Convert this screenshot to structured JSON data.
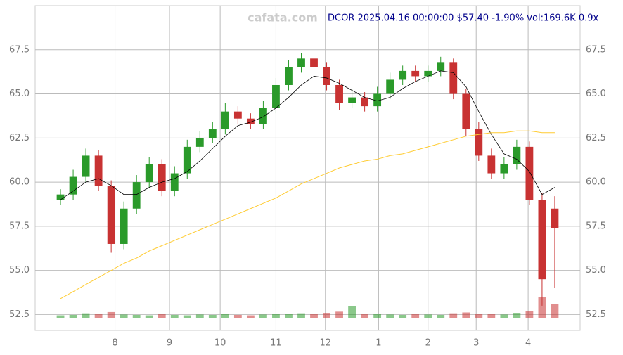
{
  "chart_data": {
    "type": "candlestick",
    "title": "DCOR 2025.04.16 00:00:00 $57.40 -1.90% vol:169.6K 0.9x",
    "watermark": "cafata.com",
    "x": [
      0,
      1,
      2,
      3,
      4,
      5,
      6,
      7,
      8,
      9,
      10,
      11,
      12,
      13,
      14,
      15,
      16,
      17,
      18,
      19,
      20,
      21,
      22,
      23,
      24,
      25,
      26,
      27,
      28,
      29,
      30,
      31,
      32,
      33,
      34,
      35,
      36,
      37,
      38,
      39
    ],
    "open": [
      59.0,
      59.3,
      60.3,
      61.5,
      59.8,
      56.5,
      58.5,
      60.0,
      61.0,
      59.5,
      60.5,
      62.0,
      62.5,
      63.0,
      64.0,
      63.6,
      63.3,
      64.2,
      65.5,
      66.5,
      67.0,
      66.5,
      65.5,
      64.5,
      64.8,
      64.3,
      65.0,
      65.8,
      66.3,
      66.0,
      66.3,
      66.8,
      65.0,
      63.0,
      61.5,
      60.5,
      61.0,
      62.0,
      59.0,
      58.5
    ],
    "close": [
      59.3,
      60.3,
      61.5,
      59.8,
      56.5,
      58.5,
      60.0,
      61.0,
      59.5,
      60.5,
      62.0,
      62.5,
      63.0,
      64.0,
      63.6,
      63.3,
      64.2,
      65.5,
      66.5,
      67.0,
      66.5,
      65.5,
      64.5,
      64.8,
      64.3,
      65.0,
      65.8,
      66.3,
      66.0,
      66.3,
      66.8,
      65.0,
      63.0,
      61.5,
      60.5,
      61.0,
      62.0,
      59.0,
      54.5,
      57.4
    ],
    "high": [
      59.6,
      60.7,
      61.9,
      61.8,
      60.1,
      58.9,
      60.4,
      61.4,
      61.3,
      60.9,
      62.4,
      62.9,
      63.4,
      64.5,
      64.3,
      63.9,
      64.6,
      65.9,
      66.9,
      67.3,
      67.2,
      66.8,
      65.8,
      65.3,
      65.1,
      65.4,
      66.2,
      66.6,
      66.6,
      66.6,
      67.1,
      67.0,
      65.3,
      63.4,
      61.9,
      61.4,
      62.4,
      62.3,
      59.4,
      59.2
    ],
    "low": [
      58.7,
      59.0,
      60.0,
      59.5,
      56.0,
      56.2,
      58.2,
      59.7,
      59.2,
      59.2,
      60.2,
      61.7,
      62.2,
      62.7,
      63.3,
      63.0,
      63.0,
      63.9,
      65.2,
      66.2,
      66.2,
      65.2,
      64.1,
      64.2,
      64.0,
      64.0,
      64.7,
      65.5,
      65.7,
      65.7,
      66.0,
      64.7,
      62.6,
      61.2,
      60.2,
      60.2,
      60.7,
      58.7,
      53.0,
      54.0
    ],
    "volume": [
      60,
      70,
      110,
      90,
      140,
      80,
      70,
      60,
      90,
      70,
      60,
      80,
      70,
      90,
      70,
      60,
      80,
      90,
      100,
      110,
      90,
      120,
      150,
      280,
      100,
      90,
      80,
      70,
      90,
      80,
      70,
      110,
      130,
      90,
      100,
      80,
      120,
      170,
      520,
      340
    ],
    "ma_short": [
      59.0,
      59.5,
      60.0,
      60.2,
      59.8,
      59.3,
      59.3,
      59.7,
      60.0,
      60.2,
      60.6,
      61.2,
      61.9,
      62.6,
      63.2,
      63.4,
      63.7,
      64.2,
      64.8,
      65.5,
      66.0,
      65.9,
      65.6,
      65.2,
      64.8,
      64.6,
      64.8,
      65.3,
      65.7,
      66.0,
      66.3,
      66.2,
      65.4,
      64.0,
      62.7,
      61.6,
      61.3,
      60.6,
      59.3,
      59.7
    ],
    "ma_long": [
      53.4,
      53.8,
      54.2,
      54.6,
      55.0,
      55.4,
      55.7,
      56.1,
      56.4,
      56.7,
      57.0,
      57.3,
      57.6,
      57.9,
      58.2,
      58.5,
      58.8,
      59.1,
      59.5,
      59.9,
      60.2,
      60.5,
      60.8,
      61.0,
      61.2,
      61.3,
      61.5,
      61.6,
      61.8,
      62.0,
      62.2,
      62.4,
      62.6,
      62.7,
      62.8,
      62.8,
      62.9,
      62.9,
      62.8,
      62.8
    ],
    "up_color": "#2a9a2a",
    "down_color": "#c83232",
    "ma_short_color": "#000000",
    "ma_long_color": "#ffcc33",
    "xlim": [
      -2,
      41
    ],
    "xticks": [
      {
        "value": 4.3,
        "label": "8"
      },
      {
        "value": 8.6,
        "label": "9"
      },
      {
        "value": 12.6,
        "label": "10"
      },
      {
        "value": 17.0,
        "label": "11"
      },
      {
        "value": 20.9,
        "label": "12"
      },
      {
        "value": 25.1,
        "label": "1"
      },
      {
        "value": 29.0,
        "label": "2"
      },
      {
        "value": 32.8,
        "label": "3"
      },
      {
        "value": 36.9,
        "label": "4"
      }
    ],
    "ylim": [
      51.6,
      70
    ],
    "yticks": [
      {
        "value": 52.5,
        "label": "52.5"
      },
      {
        "value": 55,
        "label": "55.0"
      },
      {
        "value": 57.5,
        "label": "57.5"
      },
      {
        "value": 60,
        "label": "60.0"
      },
      {
        "value": 62.5,
        "label": "62.5"
      },
      {
        "value": 65,
        "label": "65.0"
      },
      {
        "value": 67.5,
        "label": "67.5"
      }
    ],
    "grid": true
  }
}
